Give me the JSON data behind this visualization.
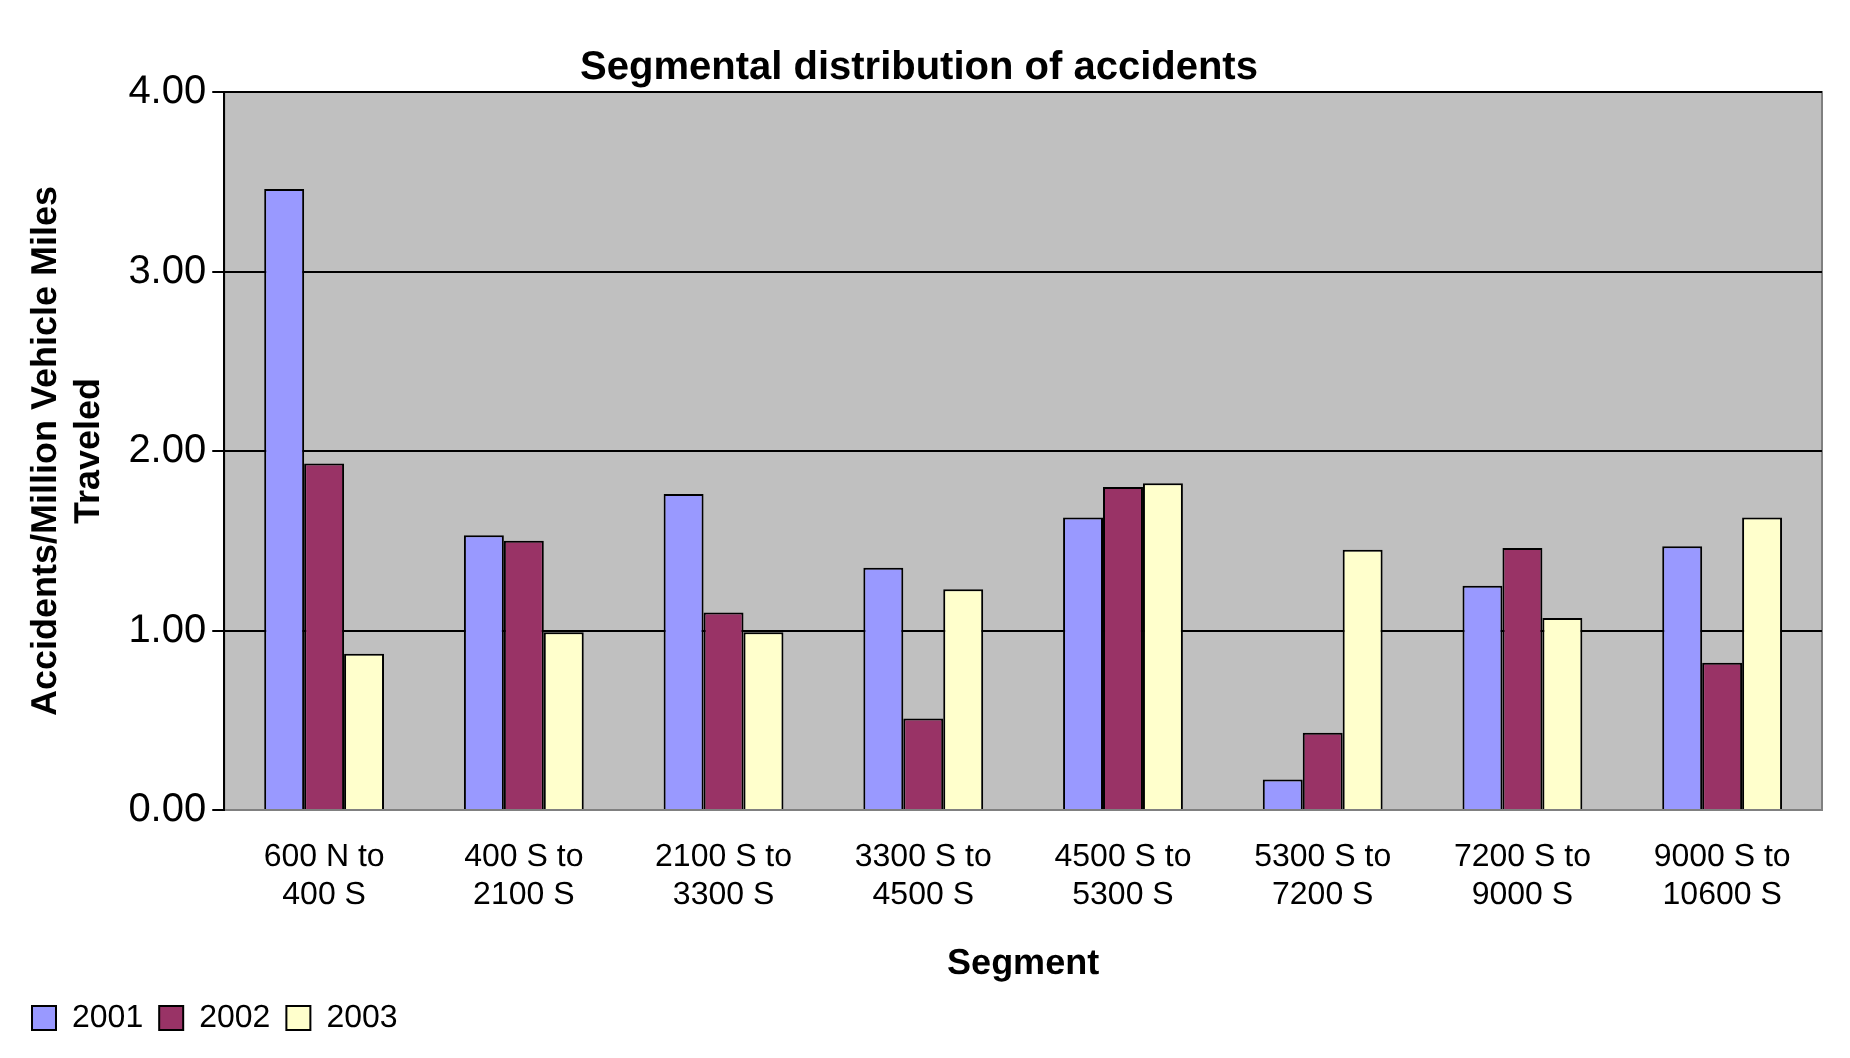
{
  "chart_data": {
    "type": "bar",
    "title": "Segmental distribution of accidents",
    "xlabel": "Segment",
    "ylabel": "Accidents/Million Vehicle Miles Traveled",
    "categories": [
      "600 N to 400 S",
      "400 S to 2100 S",
      "2100 S to 3300 S",
      "3300 S to 4500 S",
      "4500 S to 5300 S",
      "5300 S to 7200 S",
      "7200 S to 9000 S",
      "9000 S to 10600 S"
    ],
    "series": [
      {
        "name": "2001",
        "color": "#9999ff",
        "values": [
          3.46,
          1.53,
          1.76,
          1.35,
          1.63,
          0.17,
          1.25,
          1.47
        ]
      },
      {
        "name": "2002",
        "color": "#993366",
        "values": [
          1.93,
          1.5,
          1.1,
          0.51,
          1.8,
          0.43,
          1.46,
          0.82
        ]
      },
      {
        "name": "2003",
        "color": "#ffffcc",
        "values": [
          0.87,
          0.99,
          0.99,
          1.23,
          1.82,
          1.45,
          1.07,
          1.63
        ]
      }
    ],
    "ylim": [
      0,
      4
    ],
    "yticks": [
      {
        "value": 0,
        "label": "0.00"
      },
      {
        "value": 1,
        "label": "1.00"
      },
      {
        "value": 2,
        "label": "2.00"
      },
      {
        "value": 3,
        "label": "3.00"
      },
      {
        "value": 4,
        "label": "4.00"
      }
    ],
    "grid": "y",
    "legend": "bottom left"
  }
}
